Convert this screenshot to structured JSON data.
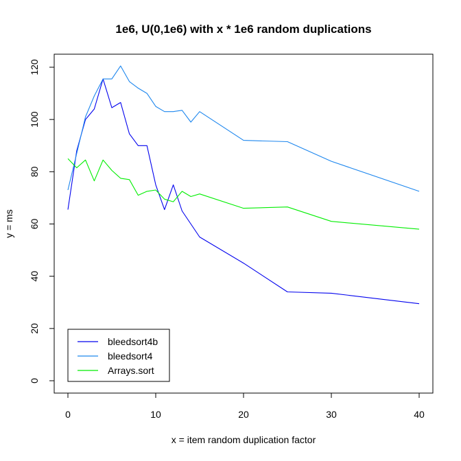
{
  "chart_data": {
    "type": "line",
    "title": "1e6, U(0,1e6) with x * 1e6 random duplications",
    "xlabel": "x = item random duplication factor",
    "ylabel": "y = ms",
    "xlim": [
      0,
      40
    ],
    "ylim": [
      0,
      120
    ],
    "xticks": [
      0,
      10,
      20,
      30,
      40
    ],
    "yticks": [
      0,
      20,
      40,
      60,
      80,
      100,
      120
    ],
    "grid": false,
    "legend_position": "bottom-left",
    "x": [
      0,
      1,
      2,
      3,
      4,
      5,
      6,
      7,
      8,
      9,
      10,
      11,
      12,
      13,
      14,
      15,
      20,
      25,
      30,
      40
    ],
    "series": [
      {
        "name": "bleedsort4b",
        "color": "#0000ee",
        "values": [
          65.5,
          88,
          100,
          104,
          115.5,
          104.5,
          106.5,
          94.5,
          90,
          90,
          75,
          65.5,
          75,
          65,
          60,
          55,
          45,
          34,
          33.5,
          29.5
        ]
      },
      {
        "name": "bleedsort4",
        "color": "#1c86ee",
        "values": [
          73,
          87,
          101,
          109,
          115.5,
          115.5,
          120.5,
          114.5,
          112,
          110,
          105,
          103,
          103,
          103.5,
          99,
          103,
          92,
          91.5,
          84,
          72.5
        ]
      },
      {
        "name": "Arrays.sort",
        "color": "#00ee00",
        "values": [
          85,
          81.5,
          84.5,
          76.5,
          84.5,
          80.5,
          77.5,
          77,
          71,
          72.5,
          73,
          69.5,
          68.5,
          72.5,
          70.5,
          71.5,
          66,
          66.5,
          61,
          58
        ]
      }
    ]
  }
}
